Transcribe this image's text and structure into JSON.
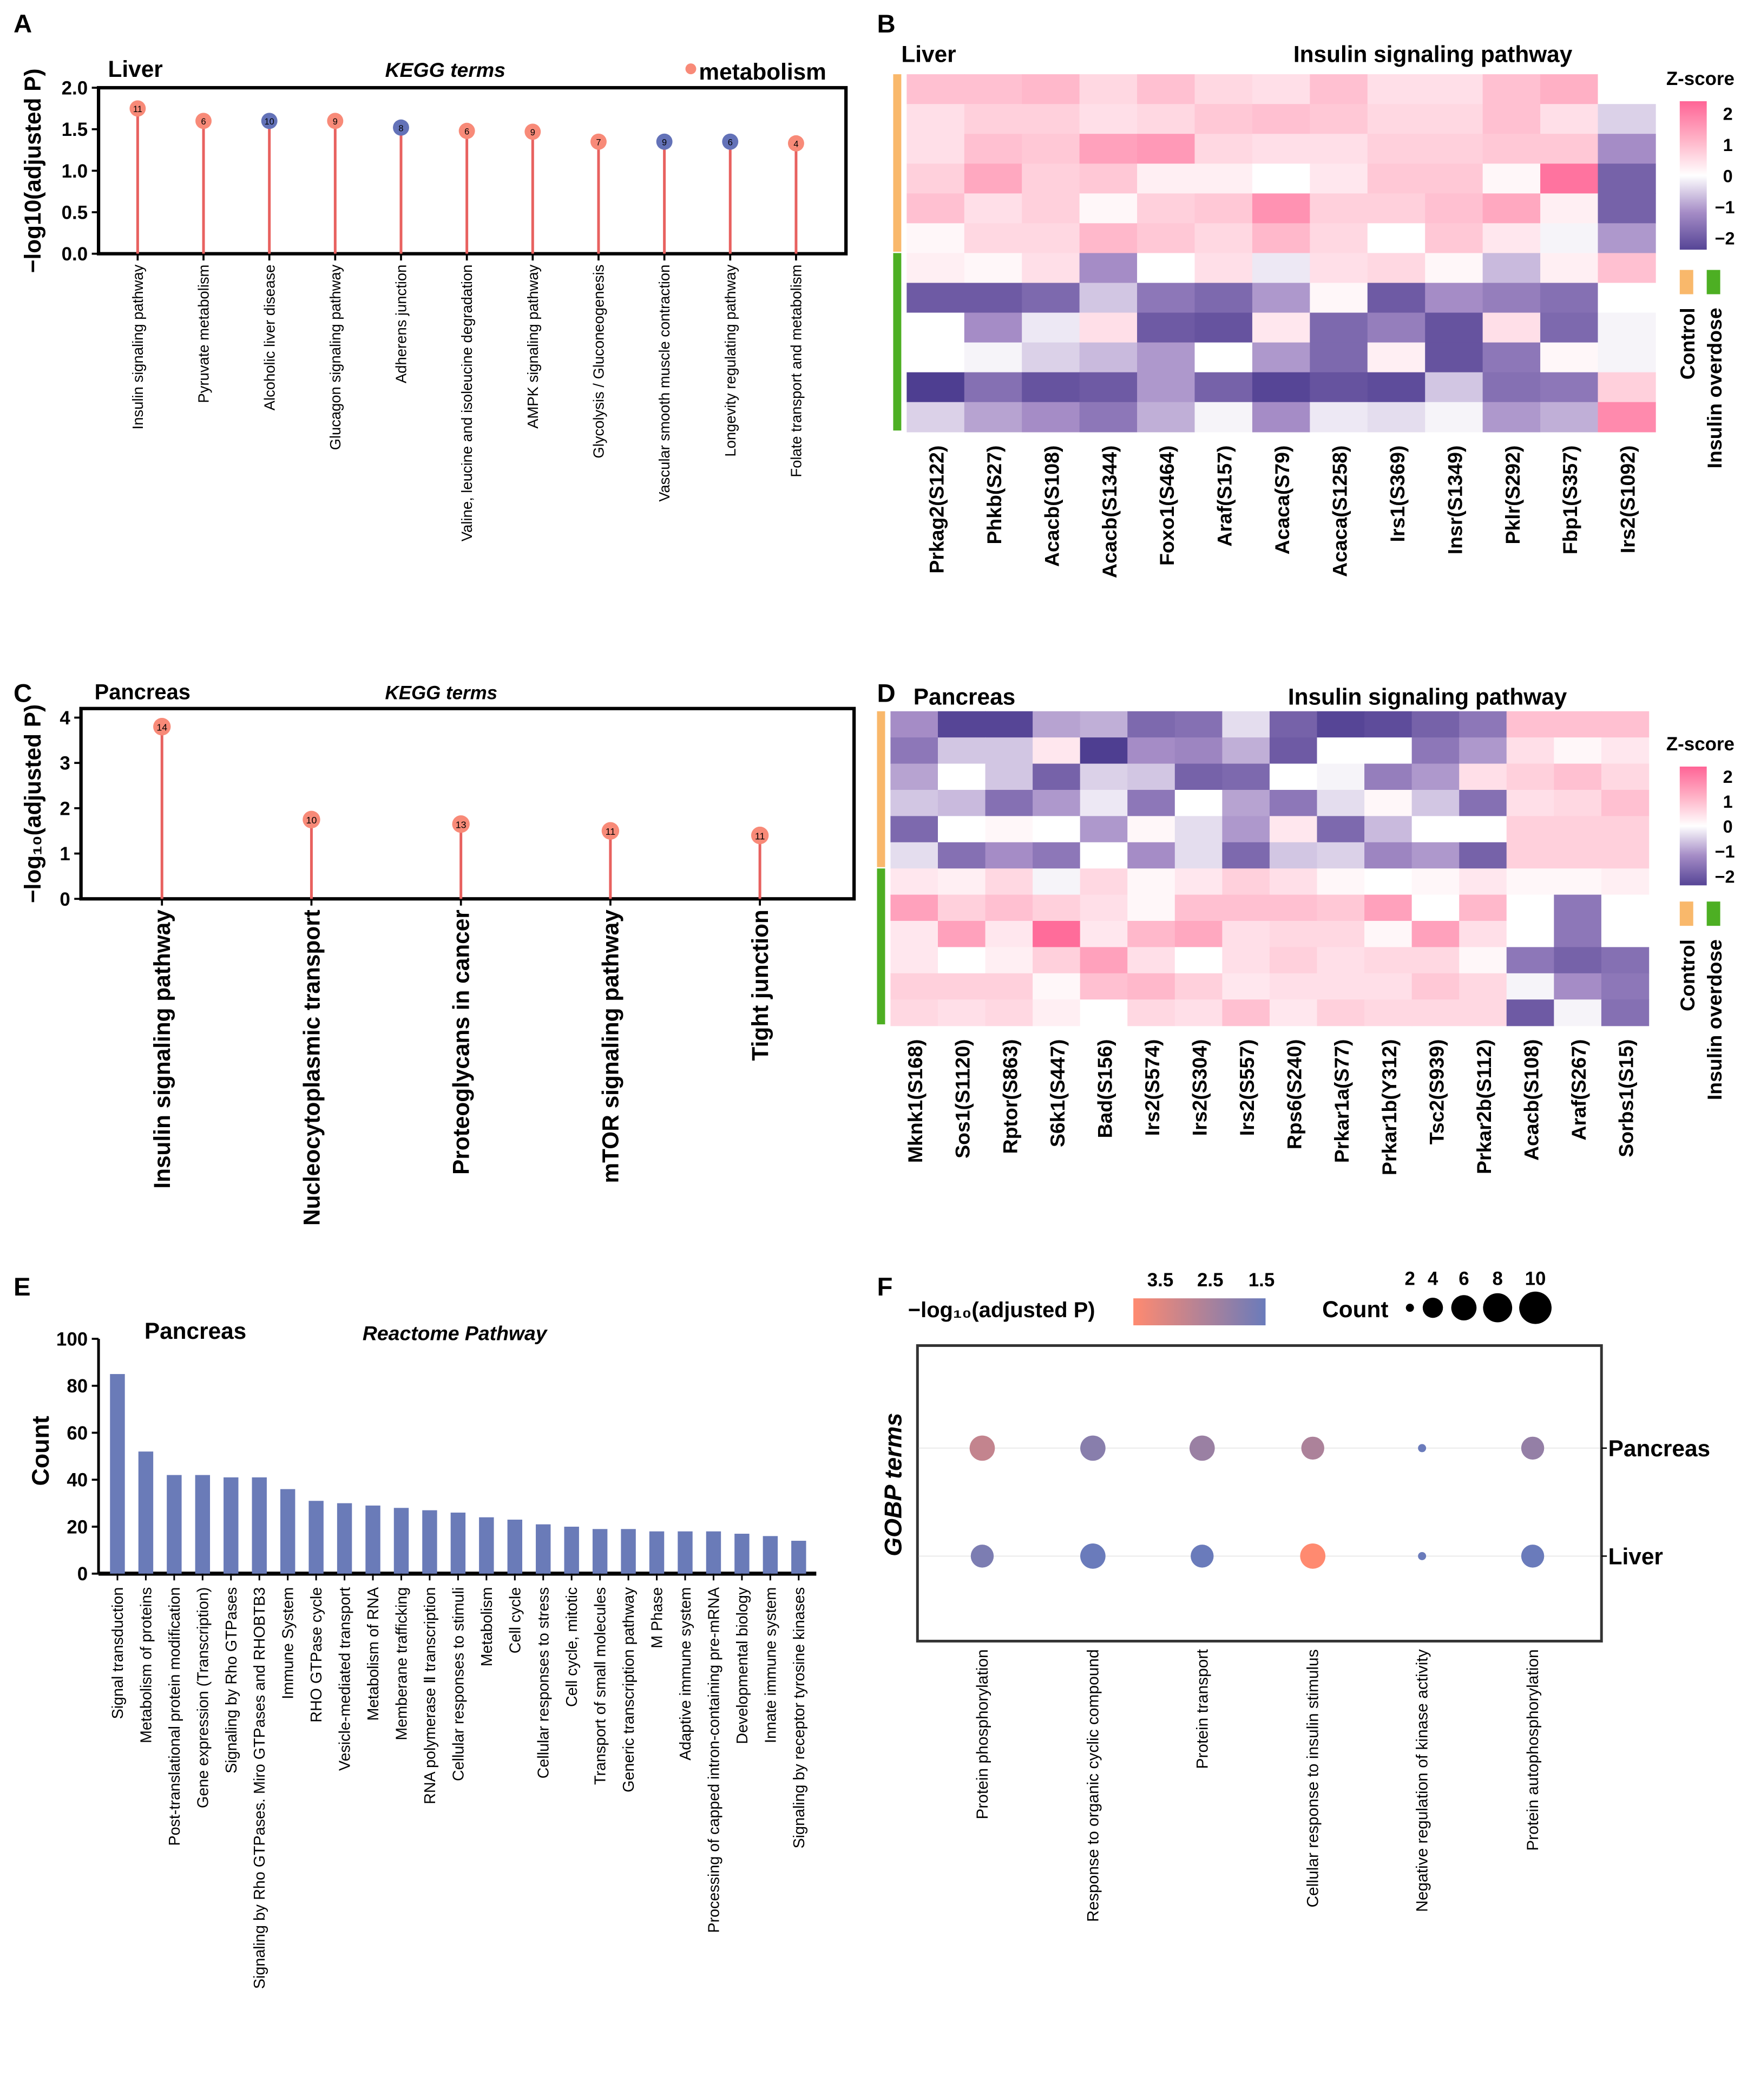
{
  "colors": {
    "metabolism": "#F88A78",
    "non_metabolism": "#6372B8",
    "stem": "#E8615F",
    "control": "#F9B86B",
    "insulin": "#4DAF23",
    "bar": "#6A7BB8",
    "title_red": "#E8141B",
    "gobp_blue": "#1A1A8C"
  },
  "chart_data": [
    {
      "panel": "A",
      "type": "lollipop",
      "tissue": "Liver",
      "title": "KEGG terms",
      "legend": "metabolism",
      "ylabel": "−log10(adjusted P)",
      "ylim": [
        0,
        2
      ],
      "yticks": [
        "0.0",
        "0.5",
        "1.0",
        "1.5",
        "2.0"
      ],
      "categories": [
        "Insulin signaling pathway",
        "Pyruvate metabolism",
        "Alcoholic liver disease",
        "Glucagon signaling pathway",
        "Adherens junction",
        "Valine, leucine and isoleucine degradation",
        "AMPK signaling pathway",
        "Glycolysis / Gluconeogenesis",
        "Vascular smooth muscle contraction",
        "Longevity regulating pathway",
        "Folate transport and metabolism"
      ],
      "values": [
        1.75,
        1.6,
        1.6,
        1.6,
        1.52,
        1.48,
        1.47,
        1.35,
        1.35,
        1.35,
        1.33
      ],
      "counts": [
        "11",
        "6",
        "10",
        "9",
        "8",
        "6",
        "9",
        "7",
        "9",
        "6",
        "4"
      ],
      "metabolism": [
        true,
        true,
        false,
        true,
        false,
        true,
        true,
        true,
        false,
        false,
        true
      ]
    },
    {
      "panel": "B",
      "type": "heatmap",
      "tissue": "Liver",
      "title": "Insulin signaling pathway",
      "legend_title": "Z-score",
      "legend_ticks": [
        "2",
        "1",
        "0",
        "−1",
        "−2"
      ],
      "groups": [
        "Control",
        "Insulin overdose"
      ],
      "group_rows": [
        6,
        6
      ],
      "columns": [
        "Prkag2(S122)",
        "Phkb(S27)",
        "Acacb(S108)",
        "Acacb(S1344)",
        "Foxo1(S464)",
        "Araf(S157)",
        "Acaca(S79)",
        "Acaca(S1258)",
        "Irs1(S369)",
        "Insr(S1349)",
        "Pklr(S292)",
        "Fbp1(S357)",
        "Irs2(S1092)"
      ],
      "z": [
        [
          0.8,
          0.8,
          0.9,
          0.5,
          0.8,
          0.5,
          0.4,
          0.8,
          0.4,
          0.4,
          0.8,
          1.0,
          0.0
        ],
        [
          0.4,
          0.6,
          0.6,
          0.4,
          0.5,
          0.7,
          0.8,
          0.7,
          0.5,
          0.5,
          0.8,
          0.4,
          -0.4
        ],
        [
          0.4,
          0.8,
          0.7,
          1.2,
          1.3,
          0.5,
          0.4,
          0.4,
          0.6,
          0.6,
          0.7,
          0.7,
          -1.0
        ],
        [
          0.6,
          1.1,
          0.6,
          0.7,
          0.2,
          0.2,
          0.0,
          0.3,
          0.7,
          0.7,
          0.1,
          1.8,
          -1.6
        ],
        [
          0.8,
          0.4,
          0.6,
          0.1,
          0.6,
          0.7,
          1.4,
          0.6,
          0.6,
          0.8,
          1.1,
          0.2,
          -1.6
        ],
        [
          0.1,
          0.5,
          0.5,
          0.9,
          0.7,
          0.5,
          0.9,
          0.5,
          0.0,
          0.7,
          0.3,
          -0.1,
          -0.9
        ],
        [
          0.2,
          0.1,
          0.4,
          -1.0,
          0.0,
          0.4,
          -0.2,
          0.4,
          0.5,
          0.1,
          -0.6,
          0.2,
          0.8
        ],
        [
          -1.7,
          -1.7,
          -1.5,
          -0.5,
          -1.3,
          -1.5,
          -0.9,
          0.1,
          -1.7,
          -1.0,
          -1.2,
          -1.4,
          0.0
        ],
        [
          0.0,
          -1.0,
          -0.2,
          0.4,
          -1.7,
          -1.8,
          0.3,
          -1.5,
          -1.2,
          -1.8,
          0.4,
          -1.5,
          -0.1
        ],
        [
          0.0,
          -0.1,
          -0.4,
          -0.6,
          -0.9,
          0.0,
          -0.9,
          -1.5,
          0.2,
          -1.8,
          -1.3,
          0.1,
          -0.1
        ],
        [
          -2.1,
          -1.4,
          -1.8,
          -1.7,
          -0.9,
          -1.6,
          -2.0,
          -1.8,
          -1.9,
          -0.5,
          -1.4,
          -1.3,
          0.6
        ],
        [
          -0.4,
          -0.8,
          -1.0,
          -1.3,
          -0.7,
          -0.1,
          -1.0,
          -0.2,
          -0.3,
          -0.1,
          -0.9,
          -0.7,
          1.5
        ]
      ]
    },
    {
      "panel": "C",
      "type": "lollipop",
      "tissue": "Pancreas",
      "title": "KEGG terms",
      "ylabel": "−log₁₀(adjusted P)",
      "ylim": [
        0,
        4.2
      ],
      "yticks": [
        "0",
        "1",
        "2",
        "3",
        "4"
      ],
      "categories": [
        "Insulin signaling pathway",
        "Nucleocytoplasmic transport",
        "Proteoglycans in cancer",
        "mTOR signaling pathway",
        "Tight junction"
      ],
      "values": [
        3.8,
        1.75,
        1.65,
        1.5,
        1.4
      ],
      "counts": [
        "14",
        "10",
        "13",
        "11",
        "11"
      ],
      "metabolism": [
        true,
        true,
        true,
        true,
        true
      ]
    },
    {
      "panel": "D",
      "type": "heatmap",
      "tissue": "Pancreas",
      "title": "Insulin signaling pathway",
      "legend_title": "Z-score",
      "legend_ticks": [
        "2",
        "1",
        "0",
        "−1",
        "−2"
      ],
      "groups": [
        "Control",
        "Insulin overdose"
      ],
      "group_rows": [
        6,
        6
      ],
      "columns": [
        "Mknk1(S168)",
        "Sos1(S1120)",
        "Rptor(S863)",
        "S6k1(S447)",
        "Bad(S156)",
        "Irs2(S574)",
        "Irs2(S304)",
        "Irs2(S557)",
        "Rps6(S240)",
        "Prkar1a(S77)",
        "Prkar1b(Y312)",
        "Tsc2(S939)",
        "Prkar2b(S112)",
        "Acacb(S108)",
        "Araf(S267)",
        "Sorbs1(S15)"
      ],
      "z": [
        [
          -1.0,
          -2.0,
          -2.0,
          -0.8,
          -0.7,
          -1.5,
          -1.4,
          -0.3,
          -1.6,
          -2.0,
          -1.9,
          -1.6,
          -1.3,
          0.8,
          0.8,
          0.8
        ],
        [
          -1.3,
          -0.5,
          -0.5,
          0.3,
          -2.1,
          -1.0,
          -1.1,
          -0.7,
          -1.7,
          0.0,
          0.0,
          -1.3,
          -0.9,
          0.4,
          0.1,
          0.3
        ],
        [
          -0.8,
          0.0,
          -0.5,
          -1.6,
          -0.4,
          -0.5,
          -1.6,
          -1.5,
          0.0,
          -0.1,
          -1.2,
          -0.9,
          0.4,
          0.6,
          0.8,
          0.5
        ],
        [
          -0.5,
          -0.6,
          -1.4,
          -0.9,
          -0.2,
          -1.3,
          0.0,
          -0.8,
          -1.3,
          -0.3,
          0.1,
          -0.5,
          -1.4,
          0.4,
          0.5,
          0.8
        ],
        [
          -1.5,
          0.0,
          0.1,
          0.0,
          -0.9,
          0.1,
          -0.3,
          -0.9,
          0.3,
          -1.5,
          -0.6,
          0.0,
          0.0,
          0.6,
          0.6,
          0.6
        ],
        [
          -0.3,
          -1.4,
          -1.0,
          -1.3,
          0.0,
          -1.0,
          -0.3,
          -1.5,
          -0.5,
          -0.4,
          -1.1,
          -0.9,
          -1.6,
          0.6,
          0.6,
          0.6
        ],
        [
          0.3,
          0.2,
          0.5,
          -0.1,
          0.5,
          0.1,
          0.3,
          0.6,
          0.4,
          0.1,
          0.0,
          0.1,
          0.3,
          0.1,
          0.1,
          0.2
        ],
        [
          1.2,
          0.6,
          0.8,
          0.6,
          0.4,
          0.1,
          0.8,
          0.8,
          0.8,
          0.7,
          1.2,
          0.0,
          0.9,
          0.0,
          -1.3,
          0.0
        ],
        [
          0.3,
          1.2,
          0.3,
          1.9,
          0.3,
          0.9,
          1.1,
          0.4,
          0.5,
          0.5,
          0.1,
          1.2,
          0.4,
          0.0,
          -1.3,
          0.0
        ],
        [
          0.3,
          0.0,
          0.2,
          0.6,
          1.2,
          0.4,
          0.0,
          0.4,
          0.6,
          0.4,
          0.5,
          0.5,
          0.1,
          -1.3,
          -1.6,
          -1.4
        ],
        [
          0.6,
          0.6,
          0.6,
          0.1,
          0.8,
          0.9,
          0.6,
          0.3,
          0.4,
          0.4,
          0.4,
          0.7,
          0.5,
          -0.1,
          -1.0,
          -1.3
        ],
        [
          0.5,
          0.4,
          0.5,
          0.2,
          0.0,
          0.5,
          0.4,
          0.8,
          0.3,
          0.6,
          0.5,
          0.5,
          0.5,
          -1.7,
          -0.1,
          -1.4
        ]
      ]
    },
    {
      "panel": "E",
      "type": "bar",
      "tissue": "Pancreas",
      "title": "Reactome Pathway",
      "ylabel": "Count",
      "ylim": [
        0,
        100
      ],
      "yticks": [
        "0",
        "20",
        "40",
        "60",
        "80",
        "100"
      ],
      "categories": [
        "Signal transduction",
        "Metabolism of proteins",
        "Post-translational protein modification",
        "Gene expression (Transcription)",
        "Signaling by Rho GTPases",
        "Signaling by Rho GTPases. Miro GTPases and RHOBTB3",
        "Immune System",
        "RHO GTPase cycle",
        "Vesicle-mediated transport",
        "Metabolism of RNA",
        "Memberane trafficking",
        "RNA polymerase Ⅱ transcription",
        "Cellular responses to stimuli",
        "Metabolism",
        "Cell cycle",
        "Cellular responses to stress",
        "Cell cycle, mitotic",
        "Transport of small molecules",
        "Generic transcription pathway",
        "M Phase",
        "Adaptive immune system",
        "Processing of capped intron-containing pre-mRNA",
        "Developmental biology",
        "Innate immune system",
        "Signaling by receptor tyrosine kinases"
      ],
      "values": [
        85,
        52,
        42,
        42,
        41,
        41,
        36,
        31,
        30,
        29,
        28,
        27,
        26,
        24,
        23,
        21,
        20,
        19,
        19,
        18,
        18,
        18,
        17,
        16,
        14
      ]
    },
    {
      "panel": "F",
      "type": "scatter",
      "title": "GOBP terms",
      "color_legend": "−log₁₀(adjusted P)",
      "color_ticks": [
        "3.5",
        "2.5",
        "1.5"
      ],
      "color_range": [
        4.0,
        1.5
      ],
      "size_legend": "Count",
      "size_ticks": [
        "2",
        "4",
        "6",
        "8",
        "10"
      ],
      "rows": [
        "Pancreas",
        "Liver"
      ],
      "categories": [
        "Protein phosphorylation",
        "Response to organic cyclic compound",
        "Protein transport",
        "Cellular response to insulin stimulus",
        "Negative regulation of kinase activity",
        "Protein autophosphorylation"
      ],
      "highlight_index": 3,
      "neglog10p": [
        [
          3.0,
          2.0,
          2.3,
          2.6,
          1.5,
          2.2
        ],
        [
          1.8,
          1.5,
          1.5,
          4.0,
          1.5,
          1.5
        ]
      ],
      "counts": [
        [
          6,
          6,
          6,
          5,
          2,
          5
        ],
        [
          5,
          6,
          5,
          6,
          2,
          5
        ]
      ]
    }
  ]
}
